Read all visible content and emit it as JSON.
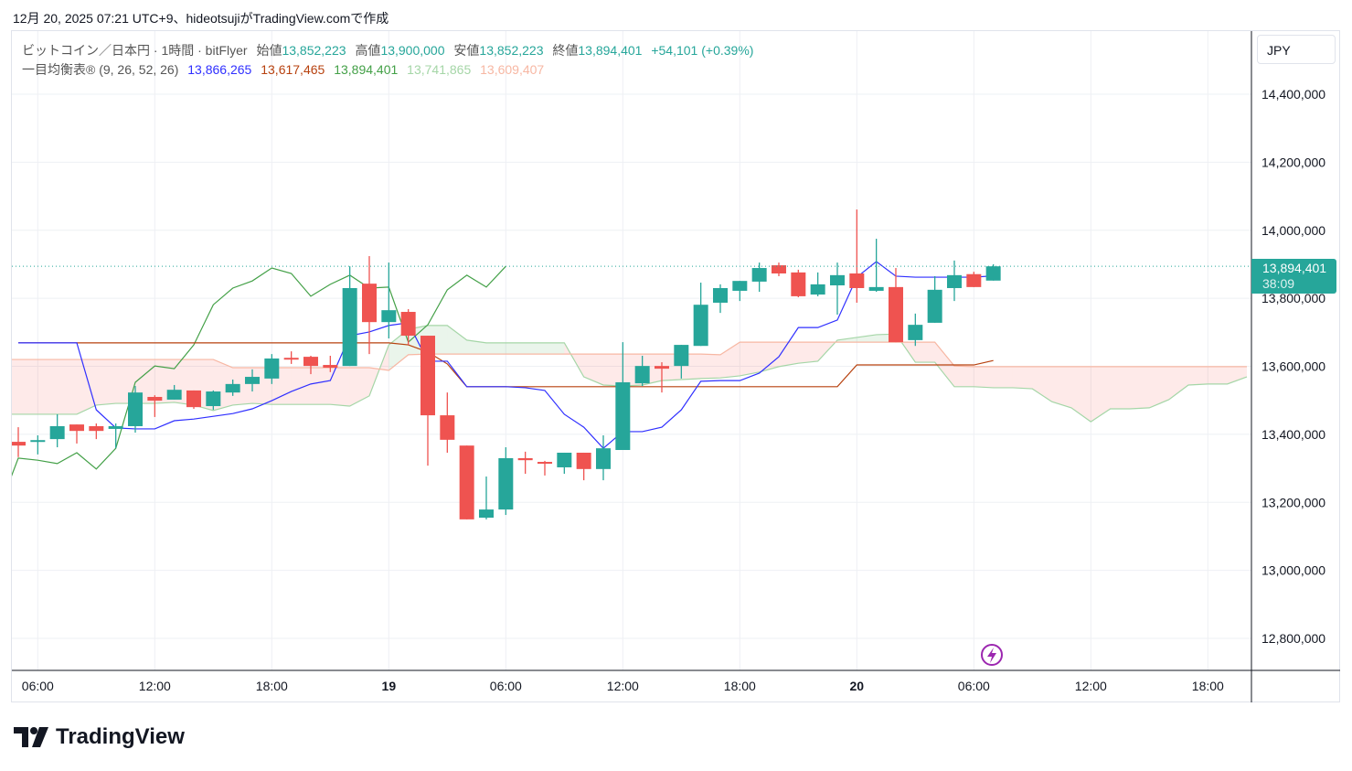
{
  "caption": "12月 20, 2025 07:21 UTC+9、hideotsujiがTradingView.comで作成",
  "legend": {
    "symbol": "ビットコイン／日本円 · 1時間 · bitFlyer",
    "open_label": "始値",
    "open": "13,852,223",
    "high_label": "高値",
    "high": "13,900,000",
    "low_label": "安値",
    "low": "13,852,223",
    "close_label": "終値",
    "close": "13,894,401",
    "change": "+54,101 (+0.39%)",
    "indicator": "一目均衡表® (9, 26, 52, 26)",
    "tenkan": "13,866,265",
    "kijun": "13,617,465",
    "chikou": "13,894,401",
    "senkou_a": "13,741,865",
    "senkou_b": "13,609,407"
  },
  "currency": "JPY",
  "last_price": {
    "price": "13,894,401",
    "countdown": "38:09"
  },
  "brand": "TradingView",
  "colors": {
    "up": "#26a69a",
    "down": "#ef5350",
    "tenkan": "#2f2fff",
    "kijun": "#b7410e",
    "chikou": "#43a047",
    "senkou_a": "#a5d6a7",
    "senkou_b": "#f7b7a3",
    "cloud_up": "rgba(67,160,71,0.11)",
    "cloud_down": "rgba(244,67,54,0.11)"
  },
  "chart_data": {
    "type": "candlestick",
    "title": "ビットコイン／日本円 · 1時間 · bitFlyer",
    "unit": "thousand JPY",
    "start_time": "18 05:00",
    "interval": "1h",
    "y_ticks": [
      "14,400,000",
      "14,200,000",
      "14,000,000",
      "13,800,000",
      "13,600,000",
      "13,400,000",
      "13,200,000",
      "13,000,000",
      "12,800,000"
    ],
    "y_tick_values": [
      14400,
      14200,
      14000,
      13800,
      13600,
      13400,
      13200,
      13000,
      12800
    ],
    "x_ticks": [
      {
        "label": "06:00",
        "bar": 1,
        "bold": false
      },
      {
        "label": "12:00",
        "bar": 7,
        "bold": false
      },
      {
        "label": "18:00",
        "bar": 13,
        "bold": false
      },
      {
        "label": "19",
        "bar": 19,
        "bold": true
      },
      {
        "label": "06:00",
        "bar": 25,
        "bold": false
      },
      {
        "label": "12:00",
        "bar": 31,
        "bold": false
      },
      {
        "label": "18:00",
        "bar": 37,
        "bold": false
      },
      {
        "label": "20",
        "bar": 43,
        "bold": true
      },
      {
        "label": "06:00",
        "bar": 49,
        "bold": false
      },
      {
        "label": "12:00",
        "bar": 55,
        "bold": false
      },
      {
        "label": "18:00",
        "bar": 61,
        "bold": false
      }
    ],
    "ohlc": [
      [
        13378,
        13421,
        13333,
        13367
      ],
      [
        13378,
        13397,
        13341,
        13383
      ],
      [
        13386,
        13459,
        13362,
        13424
      ],
      [
        13429,
        13429,
        13373,
        13410
      ],
      [
        13424,
        13432,
        13386,
        13410
      ],
      [
        13416,
        13432,
        13359,
        13424
      ],
      [
        13424,
        13542,
        13405,
        13523
      ],
      [
        13510,
        13515,
        13451,
        13499
      ],
      [
        13502,
        13545,
        13502,
        13531
      ],
      [
        13529,
        13529,
        13475,
        13480
      ],
      [
        13483,
        13529,
        13472,
        13526
      ],
      [
        13523,
        13561,
        13513,
        13548
      ],
      [
        13548,
        13591,
        13526,
        13569
      ],
      [
        13564,
        13636,
        13548,
        13623
      ],
      [
        13625,
        13644,
        13607,
        13620
      ],
      [
        13628,
        13631,
        13577,
        13601
      ],
      [
        13604,
        13631,
        13583,
        13596
      ],
      [
        13601,
        13894,
        13601,
        13830
      ],
      [
        13843,
        13924,
        13636,
        13730
      ],
      [
        13730,
        13905,
        13682,
        13765
      ],
      [
        13760,
        13768,
        13663,
        13690
      ],
      [
        13690,
        13690,
        13308,
        13456
      ],
      [
        13456,
        13523,
        13346,
        13384
      ],
      [
        13367,
        13367,
        13150,
        13150
      ],
      [
        13155,
        13276,
        13150,
        13179
      ],
      [
        13179,
        13362,
        13163,
        13330
      ],
      [
        13330,
        13349,
        13284,
        13324
      ],
      [
        13319,
        13322,
        13279,
        13314
      ],
      [
        13303,
        13346,
        13284,
        13346
      ],
      [
        13346,
        13346,
        13265,
        13298
      ],
      [
        13298,
        13397,
        13265,
        13359
      ],
      [
        13354,
        13671,
        13354,
        13553
      ],
      [
        13550,
        13631,
        13542,
        13601
      ],
      [
        13601,
        13612,
        13523,
        13593
      ],
      [
        13601,
        13663,
        13564,
        13663
      ],
      [
        13660,
        13846,
        13660,
        13781
      ],
      [
        13787,
        13841,
        13757,
        13830
      ],
      [
        13822,
        13851,
        13792,
        13851
      ],
      [
        13849,
        13905,
        13819,
        13889
      ],
      [
        13897,
        13905,
        13865,
        13873
      ],
      [
        13876,
        13884,
        13803,
        13806
      ],
      [
        13811,
        13876,
        13806,
        13841
      ],
      [
        13838,
        13905,
        13752,
        13868
      ],
      [
        13873,
        14061,
        13787,
        13830
      ],
      [
        13822,
        13975,
        13819,
        13833
      ],
      [
        13833,
        13889,
        13671,
        13671
      ],
      [
        13677,
        13755,
        13660,
        13722
      ],
      [
        13728,
        13865,
        13728,
        13825
      ],
      [
        13830,
        13911,
        13792,
        13868
      ],
      [
        13871,
        13878,
        13833,
        13833
      ],
      [
        13852,
        13900,
        13852,
        13894
      ]
    ],
    "tenkan": [
      13669,
      13669,
      13669,
      13669,
      13472,
      13419,
      13416,
      13416,
      13440,
      13445,
      13453,
      13461,
      13475,
      13499,
      13526,
      13548,
      13558,
      13690,
      13701,
      13720,
      13728,
      13615,
      13615,
      13540,
      13540,
      13540,
      13537,
      13529,
      13459,
      13421,
      13359,
      13408,
      13408,
      13421,
      13472,
      13556,
      13558,
      13558,
      13580,
      13628,
      13714,
      13714,
      13736,
      13862,
      13908,
      13865,
      13862,
      13862,
      13862,
      13862,
      13866
    ],
    "kijun": [
      13669,
      13669,
      13669,
      13669,
      13669,
      13669,
      13669,
      13669,
      13669,
      13669,
      13669,
      13669,
      13669,
      13669,
      13669,
      13669,
      13669,
      13669,
      13669,
      13669,
      13663,
      13642,
      13607,
      13540,
      13540,
      13540,
      13540,
      13540,
      13540,
      13540,
      13540,
      13540,
      13540,
      13540,
      13540,
      13540,
      13540,
      13540,
      13540,
      13540,
      13540,
      13540,
      13540,
      13604,
      13604,
      13604,
      13604,
      13604,
      13604,
      13604,
      13617
    ],
    "chikou_shift": 25,
    "senkou_a": [
      13459,
      13459,
      13459,
      13459,
      13486,
      13491,
      13491,
      13491,
      13494,
      13486,
      13470,
      13486,
      13491,
      13488,
      13488,
      13488,
      13488,
      13483,
      13513,
      13663,
      13709,
      13720,
      13720,
      13677,
      13669,
      13669,
      13669,
      13669,
      13669,
      13569,
      13545,
      13542,
      13545,
      13558,
      13561,
      13564,
      13566,
      13572,
      13583,
      13599,
      13609,
      13615,
      13677,
      13685,
      13693,
      13695,
      13612,
      13612,
      13540,
      13540,
      13537,
      13537,
      13534,
      13496,
      13478,
      13437,
      13475,
      13475,
      13478,
      13502,
      13545,
      13548,
      13548,
      13569
    ],
    "senkou_b": [
      13620,
      13620,
      13620,
      13620,
      13620,
      13620,
      13620,
      13620,
      13620,
      13620,
      13620,
      13596,
      13596,
      13596,
      13596,
      13596,
      13596,
      13596,
      13596,
      13588,
      13634,
      13636,
      13636,
      13636,
      13636,
      13636,
      13636,
      13636,
      13636,
      13636,
      13636,
      13636,
      13636,
      13636,
      13636,
      13636,
      13634,
      13671,
      13671,
      13671,
      13671,
      13671,
      13671,
      13671,
      13671,
      13671,
      13671,
      13671,
      13601,
      13599,
      13599,
      13599,
      13599,
      13599,
      13599,
      13599,
      13599,
      13599,
      13599,
      13599,
      13599,
      13599,
      13599,
      13599
    ],
    "grid": true
  }
}
